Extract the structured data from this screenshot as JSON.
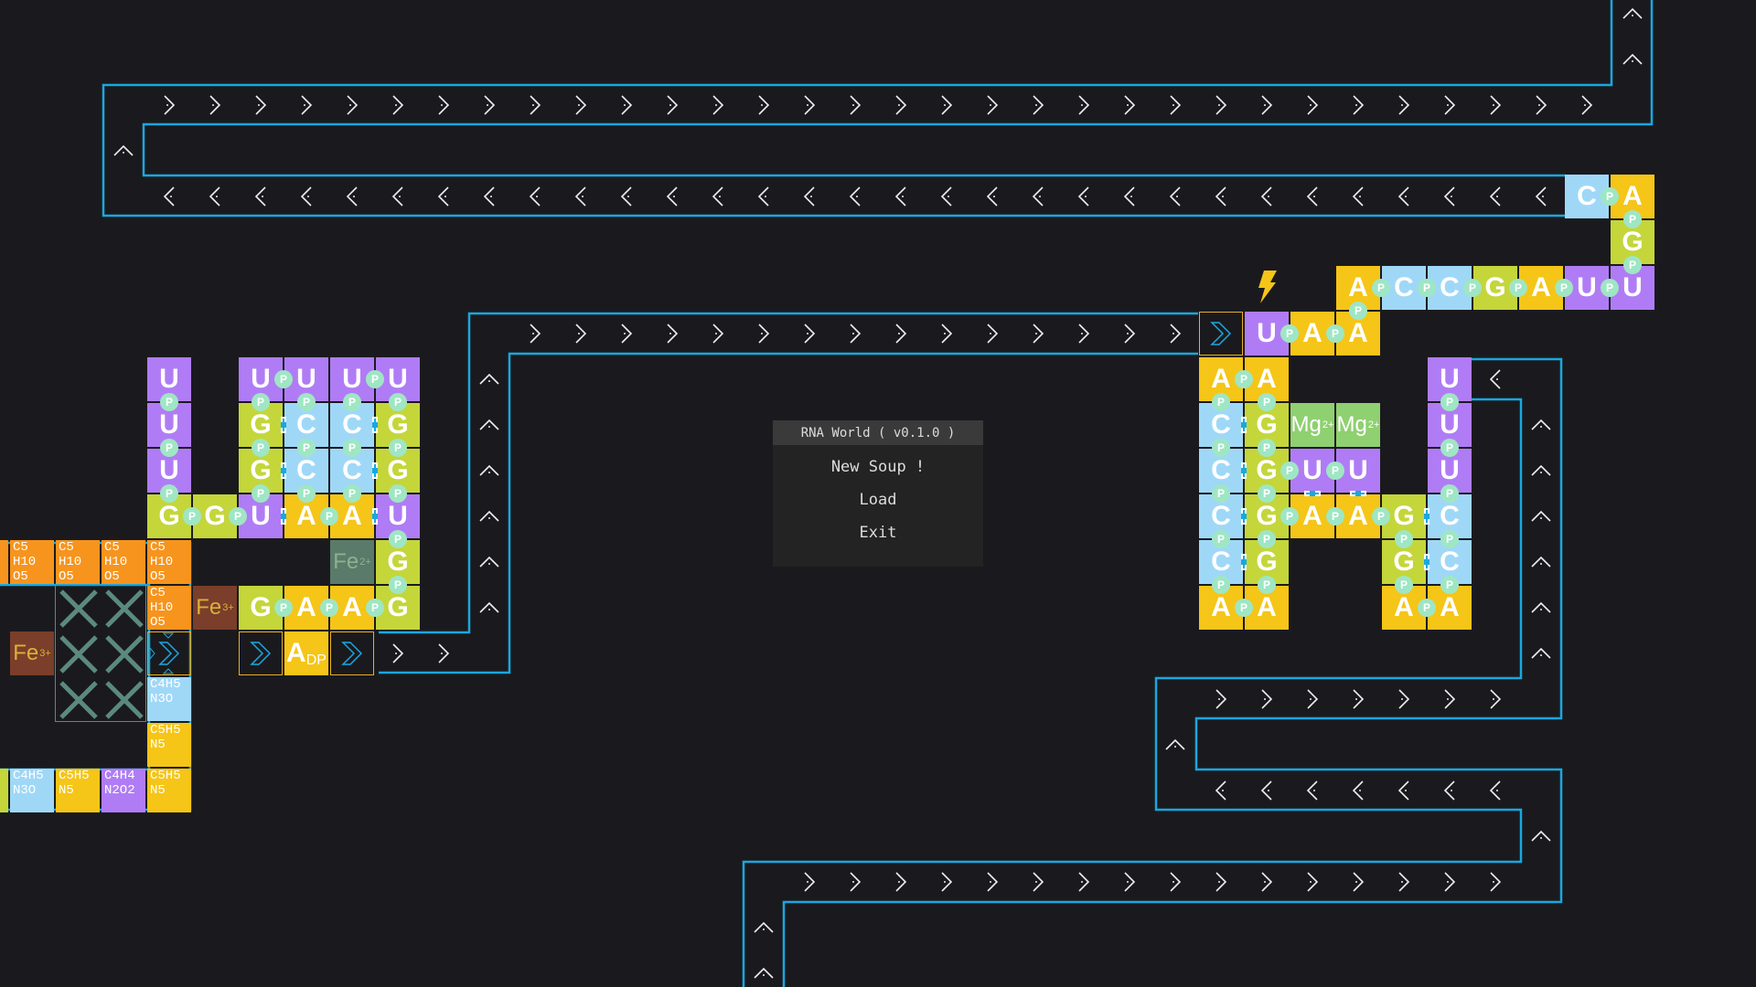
{
  "menu": {
    "title": "RNA World ( v0.1.0 )",
    "items": [
      {
        "label": "New Soup !"
      },
      {
        "label": "Load"
      },
      {
        "label": "Exit"
      }
    ]
  },
  "colors": {
    "A": "#f5c518",
    "C": "#9fd8f7",
    "G": "#c4d63a",
    "U": "#b07cf5",
    "phosphate": "#9fe6c4",
    "channel": "#1aa7e0",
    "background": "#1a1a1e",
    "ribose": "#f7941d",
    "fe3": "#7a3e2a",
    "fe2": "#5a7a6a",
    "mg": "#8fd070",
    "machine_border": "#e8b021"
  },
  "board": {
    "phosphate_label": "P",
    "tiles": [
      {
        "label": "C"
      },
      {
        "label": "A"
      },
      {
        "label": "G"
      },
      {
        "label": "U"
      },
      {
        "label": "U"
      },
      {
        "label": "A"
      },
      {
        "label": "G"
      },
      {
        "label": "C"
      },
      {
        "label": "C"
      },
      {
        "label": "A"
      },
      {
        "label": "A"
      },
      {
        "label": "A"
      },
      {
        "label": "U"
      },
      {
        "label": "U"
      },
      {
        "label": "U"
      },
      {
        "label": "U"
      },
      {
        "label": "G"
      },
      {
        "label": "G"
      },
      {
        "label": "U"
      },
      {
        "label": "G"
      },
      {
        "label": "G"
      },
      {
        "label": "U"
      },
      {
        "label": "U"
      },
      {
        "label": "C"
      },
      {
        "label": "C"
      },
      {
        "label": "A"
      },
      {
        "label": "A"
      },
      {
        "label": "C"
      },
      {
        "label": "C"
      },
      {
        "label": "U"
      },
      {
        "label": "U"
      },
      {
        "label": "G"
      },
      {
        "label": "G"
      },
      {
        "label": "U"
      },
      {
        "label": "G"
      },
      {
        "label": "G"
      },
      {
        "label": "A"
      },
      {
        "label": "A"
      },
      {
        "label": "G"
      },
      {
        "label": "A"
      },
      {
        "label": "A"
      },
      {
        "label": "C"
      },
      {
        "label": "C"
      },
      {
        "label": "C"
      },
      {
        "label": "C"
      },
      {
        "label": "A"
      },
      {
        "label": "A"
      },
      {
        "label": "G"
      },
      {
        "label": "G"
      },
      {
        "label": "G"
      },
      {
        "label": "G"
      },
      {
        "label": "U"
      },
      {
        "label": "U"
      },
      {
        "label": "A"
      },
      {
        "label": "A"
      },
      {
        "label": "G"
      },
      {
        "label": "G"
      },
      {
        "label": "A"
      },
      {
        "label": "A"
      },
      {
        "label": "C"
      },
      {
        "label": "C"
      },
      {
        "label": "U"
      },
      {
        "label": "U"
      },
      {
        "label": "U"
      }
    ],
    "molecules": [
      {
        "label": "C5\nH10\nO5",
        "kind": "ribose"
      },
      {
        "label": "C5\nH10\nO5",
        "kind": "ribose"
      },
      {
        "label": "C5\nH10\nO5",
        "kind": "ribose"
      },
      {
        "label": "C5\nH10\nO5",
        "kind": "ribose"
      },
      {
        "label": "C5\nH10\nO5",
        "kind": "ribose"
      },
      {
        "label": "C4H5\nN3O",
        "kind": "C"
      },
      {
        "label": "C5H5\nN5",
        "kind": "A"
      },
      {
        "label": "C4H5\nN3O",
        "kind": "C"
      },
      {
        "label": "C5H5\nN5",
        "kind": "A"
      },
      {
        "label": "C4H4\nN2O2",
        "kind": "U"
      },
      {
        "label": "C5H5\nN5",
        "kind": "A"
      }
    ],
    "ions": [
      {
        "symbol": "Fe",
        "charge": "3+",
        "kind": "fe3"
      },
      {
        "symbol": "Fe",
        "charge": "3+",
        "kind": "fe3"
      },
      {
        "symbol": "Fe",
        "charge": "2+",
        "kind": "fe2"
      },
      {
        "symbol": "Mg",
        "charge": "2+",
        "kind": "mg"
      },
      {
        "symbol": "Mg",
        "charge": "2+",
        "kind": "mg"
      }
    ],
    "adp": {
      "base": "A",
      "suffix": "DP"
    },
    "icons": {
      "conveyor": "chevron-arrow-icon",
      "machine": "double-chevron-icon",
      "energy": "lightning-icon",
      "blocker": "x-icon"
    }
  }
}
